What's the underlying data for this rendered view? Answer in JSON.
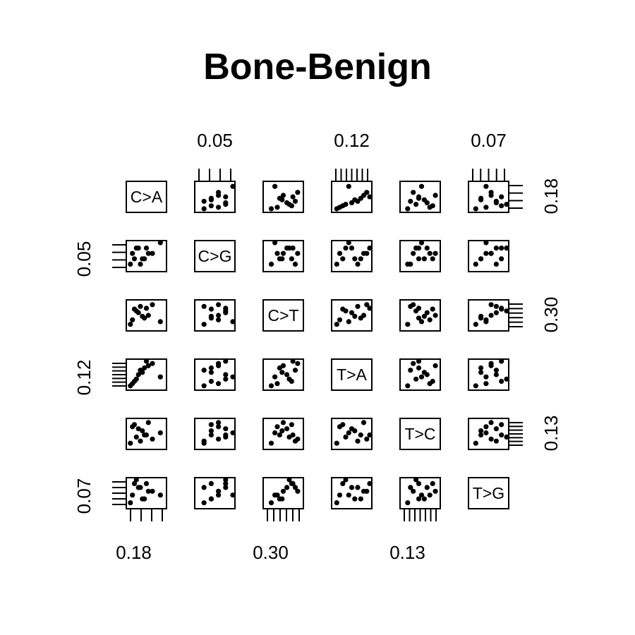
{
  "chart_data": {
    "type": "scatter",
    "subtype": "pairs-matrix",
    "title": "Bone-Benign",
    "variables": [
      "C>A",
      "C>G",
      "C>T",
      "T>A",
      "T>C",
      "T>G"
    ],
    "axis_max": {
      "C>A": "0.18",
      "C>G": "0.05",
      "C>T": "0.30",
      "T>A": "0.12",
      "T>C": "0.13",
      "T>G": "0.07"
    },
    "axis_label_placement": {
      "top": [
        "C>G",
        "T>A",
        "T>G"
      ],
      "bottom": [
        "C>A",
        "C>T",
        "T>C"
      ],
      "left": [
        "C>G",
        "T>A",
        "T>G"
      ],
      "right": [
        "C>A",
        "C>T",
        "T>C"
      ]
    },
    "samples": [
      {
        "C>A": 0.01,
        "C>G": 0.01,
        "C>T": 0.05,
        "T>A": 0.01,
        "T>C": 0.02,
        "T>G": 0.01
      },
      {
        "C>A": 0.12,
        "C>G": 0.03,
        "C>T": 0.27,
        "T>A": 0.11,
        "T>C": 0.04,
        "T>G": 0.04
      },
      {
        "C>A": 0.05,
        "C>G": 0.04,
        "C>T": 0.18,
        "T>A": 0.06,
        "T>C": 0.09,
        "T>G": 0.05
      },
      {
        "C>A": 0.08,
        "C>G": 0.02,
        "C>T": 0.12,
        "T>A": 0.09,
        "T>C": 0.06,
        "T>G": 0.02
      },
      {
        "C>A": 0.03,
        "C>G": 0.02,
        "C>T": 0.22,
        "T>A": 0.03,
        "T>C": 0.11,
        "T>G": 0.06
      },
      {
        "C>A": 0.16,
        "C>G": 0.05,
        "C>T": 0.08,
        "T>A": 0.05,
        "T>C": 0.07,
        "T>G": 0.03
      },
      {
        "C>A": 0.06,
        "C>G": 0.01,
        "C>T": 0.25,
        "T>A": 0.08,
        "T>C": 0.03,
        "T>G": 0.05
      },
      {
        "C>A": 0.1,
        "C>G": 0.03,
        "C>T": 0.15,
        "T>A": 0.1,
        "T>C": 0.12,
        "T>G": 0.04
      },
      {
        "C>A": 0.04,
        "C>G": 0.04,
        "C>T": 0.2,
        "T>A": 0.04,
        "T>C": 0.05,
        "T>G": 0.07
      },
      {
        "C>A": 0.07,
        "C>G": 0.02,
        "C>T": 0.14,
        "T>A": 0.07,
        "T>C": 0.08,
        "T>G": 0.02
      },
      {
        "C>A": 0.02,
        "C>G": 0.03,
        "C>T": 0.1,
        "T>A": 0.02,
        "T>C": 0.1,
        "T>G": 0.03
      },
      {
        "C>A": 0.09,
        "C>G": 0.04,
        "C>T": 0.23,
        "T>A": 0.12,
        "T>C": 0.06,
        "T>G": 0.06
      }
    ],
    "grid": false,
    "legend": "none"
  }
}
